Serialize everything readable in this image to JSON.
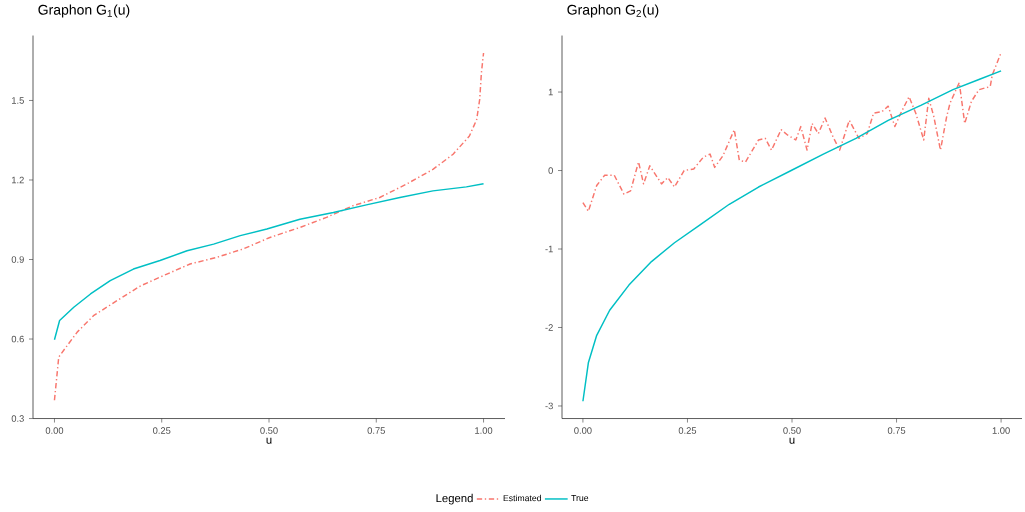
{
  "chart_data": [
    {
      "type": "line",
      "title": "Graphon G$_{1}$(u)",
      "xlabel": "u",
      "legend": "bottom",
      "legend_title": "Legend",
      "line_style": "solid",
      "xlim": [
        -0.05,
        1.05
      ],
      "ylim": [
        0.3,
        1.745
      ],
      "xticks": [
        {
          "value": 0,
          "label": "0.00"
        },
        {
          "value": 0.25,
          "label": "0.25"
        },
        {
          "value": 0.5,
          "label": "0.50"
        },
        {
          "value": 0.75,
          "label": "0.75"
        },
        {
          "value": 1,
          "label": "1.00"
        }
      ],
      "yticks": [
        0.3,
        0.6,
        0.9,
        1.2,
        1.5
      ],
      "series": [
        {
          "name": "Estimated",
          "color": "#f8766d",
          "line_style": "dashdot",
          "x": [
            0,
            0.01,
            0.03,
            0.053,
            0.091,
            0.146,
            0.2,
            0.262,
            0.316,
            0.378,
            0.44,
            0.502,
            0.572,
            0.634,
            0.696,
            0.758,
            0.82,
            0.882,
            0.929,
            0.967,
            0.984,
            0.991,
            0.995,
            1.0
          ],
          "values": [
            0.369,
            0.532,
            0.576,
            0.626,
            0.688,
            0.745,
            0.8,
            0.845,
            0.883,
            0.908,
            0.94,
            0.983,
            1.021,
            1.059,
            1.103,
            1.134,
            1.184,
            1.24,
            1.297,
            1.366,
            1.428,
            1.504,
            1.604,
            1.679
          ]
        },
        {
          "name": "True",
          "color": "#00bfc4",
          "x": [
            0,
            0.012,
            0.045,
            0.084,
            0.13,
            0.184,
            0.246,
            0.309,
            0.371,
            0.433,
            0.495,
            0.572,
            0.65,
            0.727,
            0.805,
            0.882,
            0.96,
            1.0
          ],
          "values": [
            0.597,
            0.67,
            0.72,
            0.77,
            0.82,
            0.864,
            0.896,
            0.933,
            0.958,
            0.99,
            1.015,
            1.052,
            1.077,
            1.106,
            1.134,
            1.159,
            1.174,
            1.186
          ]
        }
      ]
    },
    {
      "type": "line",
      "title": "Graphon G$_{2}$(u)",
      "xlabel": "u",
      "line_style": "solid",
      "xlim": [
        -0.05,
        1.05
      ],
      "ylim": [
        -3.16,
        1.72
      ],
      "xticks": [
        {
          "value": 0,
          "label": "0.00"
        },
        {
          "value": 0.25,
          "label": "0.25"
        },
        {
          "value": 0.5,
          "label": "0.50"
        },
        {
          "value": 0.75,
          "label": "0.75"
        },
        {
          "value": 1,
          "label": "1.00"
        }
      ],
      "yticks": [
        -3,
        -2,
        -1,
        0,
        1
      ],
      "series": [
        {
          "color": "#f8766d",
          "line_style": "dashdot",
          "x": [
            0,
            0.013,
            0.033,
            0.052,
            0.075,
            0.098,
            0.114,
            0.133,
            0.145,
            0.16,
            0.188,
            0.203,
            0.219,
            0.242,
            0.265,
            0.288,
            0.304,
            0.315,
            0.335,
            0.362,
            0.374,
            0.389,
            0.42,
            0.436,
            0.451,
            0.474,
            0.49,
            0.509,
            0.521,
            0.536,
            0.548,
            0.563,
            0.579,
            0.598,
            0.614,
            0.637,
            0.66,
            0.68,
            0.695,
            0.715,
            0.73,
            0.746,
            0.76,
            0.78,
            0.796,
            0.815,
            0.827,
            0.839,
            0.855,
            0.87,
            0.878,
            0.9,
            0.913,
            0.929,
            0.947,
            0.974,
            0.979,
            1.0
          ],
          "values": [
            -0.41,
            -0.52,
            -0.19,
            -0.06,
            -0.06,
            -0.3,
            -0.26,
            0.11,
            -0.17,
            0.06,
            -0.17,
            -0.09,
            -0.21,
            0,
            0.02,
            0.17,
            0.21,
            0.04,
            0.19,
            0.52,
            0.13,
            0.11,
            0.39,
            0.41,
            0.26,
            0.52,
            0.45,
            0.39,
            0.56,
            0.26,
            0.6,
            0.47,
            0.67,
            0.43,
            0.26,
            0.64,
            0.41,
            0.47,
            0.73,
            0.75,
            0.82,
            0.56,
            0.73,
            0.94,
            0.73,
            0.39,
            0.92,
            0.69,
            0.26,
            0.69,
            0.86,
            1.12,
            0.6,
            0.88,
            1.03,
            1.07,
            1.22,
            1.5
          ]
        },
        {
          "color": "#00bfc4",
          "x": [
            0,
            0.013,
            0.033,
            0.064,
            0.11,
            0.164,
            0.219,
            0.281,
            0.35,
            0.42,
            0.498,
            0.575,
            0.653,
            0.73,
            0.808,
            0.885,
            0.947,
            1.0
          ],
          "values": [
            -2.94,
            -2.45,
            -2.1,
            -1.78,
            -1.46,
            -1.16,
            -0.92,
            -0.69,
            -0.43,
            -0.21,
            0,
            0.21,
            0.41,
            0.64,
            0.83,
            1.03,
            1.16,
            1.27
          ]
        }
      ]
    }
  ]
}
